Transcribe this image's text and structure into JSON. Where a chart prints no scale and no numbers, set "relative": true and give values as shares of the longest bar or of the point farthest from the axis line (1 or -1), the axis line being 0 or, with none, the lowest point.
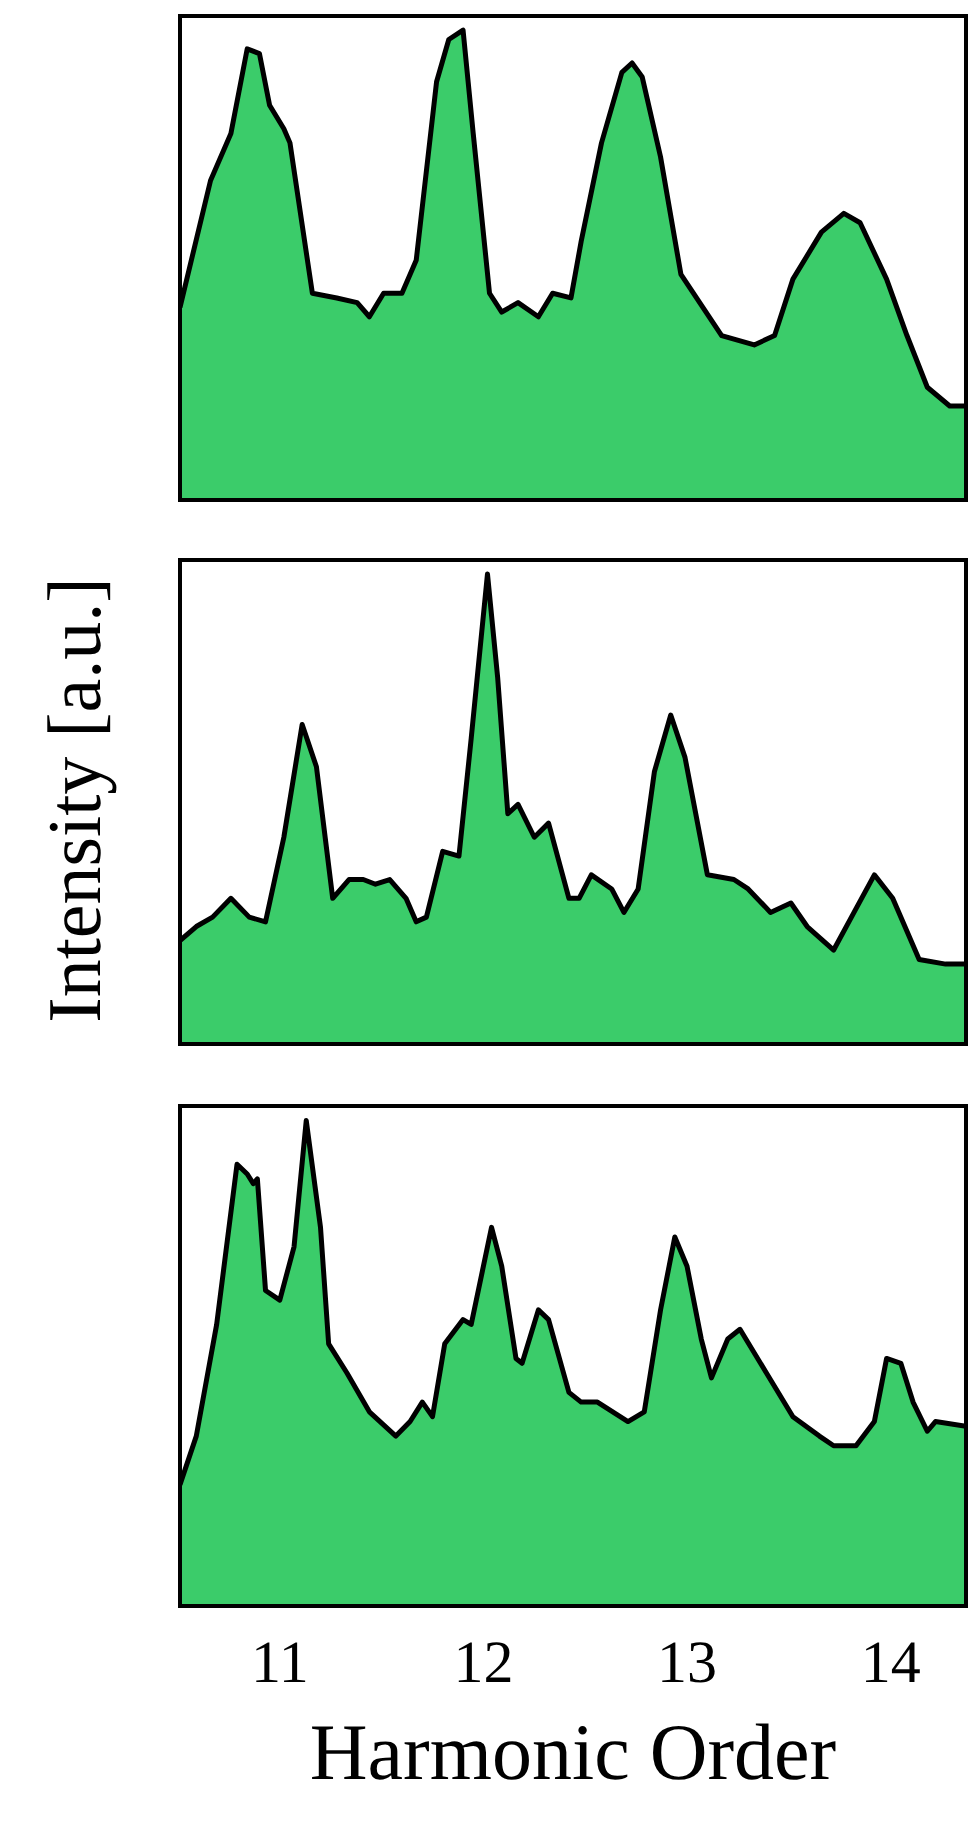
{
  "chart_data": [
    {
      "type": "area",
      "color": "#3bcc6a",
      "relative": true,
      "xlim": [
        10.51,
        14.37
      ],
      "xticks": [
        11,
        12,
        13,
        14
      ],
      "tick_labels": false,
      "x": [
        10.51,
        10.66,
        10.76,
        10.84,
        10.9,
        10.95,
        11.02,
        11.05,
        11.16,
        11.28,
        11.38,
        11.44,
        11.51,
        11.6,
        11.67,
        11.77,
        11.83,
        11.9,
        11.95,
        12.03,
        12.09,
        12.17,
        12.27,
        12.34,
        12.43,
        12.48,
        12.58,
        12.68,
        12.73,
        12.78,
        12.87,
        12.97,
        13.17,
        13.33,
        13.43,
        13.52,
        13.66,
        13.77,
        13.85,
        13.98,
        14.08,
        14.18,
        14.29,
        14.37
      ],
      "values": [
        0.41,
        0.68,
        0.78,
        0.96,
        0.95,
        0.84,
        0.79,
        0.76,
        0.44,
        0.43,
        0.42,
        0.39,
        0.44,
        0.44,
        0.51,
        0.89,
        0.98,
        1,
        0.78,
        0.44,
        0.4,
        0.42,
        0.39,
        0.44,
        0.43,
        0.55,
        0.76,
        0.91,
        0.93,
        0.9,
        0.73,
        0.48,
        0.35,
        0.33,
        0.35,
        0.47,
        0.57,
        0.61,
        0.59,
        0.47,
        0.35,
        0.24,
        0.2,
        0.2
      ]
    },
    {
      "type": "area",
      "color": "#3bcc6a",
      "relative": true,
      "xlim": [
        10.51,
        14.37
      ],
      "xticks": [
        11,
        12,
        13,
        14
      ],
      "tick_labels": false,
      "ylabel": "Intensity [a.u.]",
      "x": [
        10.51,
        10.59,
        10.67,
        10.76,
        10.85,
        10.93,
        11.02,
        11.11,
        11.18,
        11.26,
        11.34,
        11.41,
        11.47,
        11.54,
        11.62,
        11.67,
        11.72,
        11.8,
        11.88,
        11.94,
        12.02,
        12.07,
        12.12,
        12.17,
        12.25,
        12.32,
        12.42,
        12.47,
        12.53,
        12.63,
        12.69,
        12.76,
        12.84,
        12.92,
        12.99,
        13.1,
        13.23,
        13.3,
        13.41,
        13.51,
        13.59,
        13.72,
        13.82,
        13.92,
        14.01,
        14.14,
        14.27,
        14.37
      ],
      "values": [
        0.22,
        0.25,
        0.27,
        0.31,
        0.27,
        0.26,
        0.44,
        0.68,
        0.59,
        0.31,
        0.35,
        0.35,
        0.34,
        0.35,
        0.31,
        0.26,
        0.27,
        0.41,
        0.4,
        0.65,
        1,
        0.78,
        0.49,
        0.51,
        0.44,
        0.47,
        0.31,
        0.31,
        0.36,
        0.33,
        0.28,
        0.33,
        0.58,
        0.7,
        0.61,
        0.36,
        0.35,
        0.33,
        0.28,
        0.3,
        0.25,
        0.2,
        0.28,
        0.36,
        0.31,
        0.18,
        0.17,
        0.17
      ]
    },
    {
      "type": "area",
      "color": "#3bcc6a",
      "relative": true,
      "xlim": [
        10.51,
        14.37
      ],
      "xticks": [
        11,
        12,
        13,
        14
      ],
      "tick_labels": "x",
      "xlabel": "Harmonic Order",
      "x": [
        10.51,
        10.59,
        10.69,
        10.79,
        10.84,
        10.87,
        10.89,
        10.93,
        11,
        11.07,
        11.13,
        11.2,
        11.24,
        11.33,
        11.44,
        11.57,
        11.64,
        11.7,
        11.75,
        11.81,
        11.9,
        11.94,
        12.04,
        12.09,
        12.16,
        12.19,
        12.27,
        12.32,
        12.42,
        12.48,
        12.56,
        12.71,
        12.79,
        12.87,
        12.94,
        13,
        13.07,
        13.12,
        13.2,
        13.26,
        13.39,
        13.52,
        13.65,
        13.72,
        13.83,
        13.92,
        13.98,
        14.05,
        14.11,
        14.18,
        14.22,
        14.37
      ],
      "values": [
        0.25,
        0.35,
        0.58,
        0.91,
        0.89,
        0.87,
        0.88,
        0.65,
        0.63,
        0.74,
        1,
        0.78,
        0.54,
        0.48,
        0.4,
        0.35,
        0.38,
        0.42,
        0.39,
        0.54,
        0.59,
        0.58,
        0.78,
        0.7,
        0.51,
        0.5,
        0.61,
        0.59,
        0.44,
        0.42,
        0.42,
        0.38,
        0.4,
        0.61,
        0.76,
        0.7,
        0.55,
        0.47,
        0.55,
        0.57,
        0.48,
        0.39,
        0.35,
        0.33,
        0.33,
        0.38,
        0.51,
        0.5,
        0.42,
        0.36,
        0.38,
        0.37
      ]
    }
  ]
}
